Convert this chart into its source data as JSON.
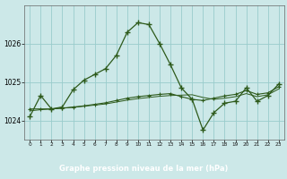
{
  "xlabel": "Graphe pression niveau de la mer (hPa)",
  "bg_color": "#cce8e8",
  "grid_color": "#99cccc",
  "line_color": "#2d5a1b",
  "label_bg": "#3a6b2a",
  "label_fg": "#ffffff",
  "x_ticks": [
    0,
    1,
    2,
    3,
    4,
    5,
    6,
    7,
    8,
    9,
    10,
    11,
    12,
    13,
    14,
    15,
    16,
    17,
    18,
    19,
    20,
    21,
    22,
    23
  ],
  "ylim": [
    1023.5,
    1027.0
  ],
  "yticks": [
    1024,
    1025,
    1026
  ],
  "series1": [
    1024.1,
    1024.65,
    1024.3,
    1024.35,
    1024.8,
    1025.05,
    1025.2,
    1025.35,
    1025.7,
    1026.3,
    1026.55,
    1026.5,
    1026.0,
    1025.45,
    1024.85,
    1024.55,
    1023.75,
    1024.2,
    1024.45,
    1024.5,
    1024.85,
    1024.5,
    1024.65,
    1024.95
  ],
  "series2": [
    1024.3,
    1024.3,
    1024.3,
    1024.32,
    1024.35,
    1024.38,
    1024.42,
    1024.46,
    1024.52,
    1024.58,
    1024.62,
    1024.65,
    1024.68,
    1024.7,
    1024.62,
    1024.55,
    1024.52,
    1024.58,
    1024.64,
    1024.68,
    1024.78,
    1024.68,
    1024.72,
    1024.88
  ],
  "series3": [
    1024.25,
    1024.28,
    1024.3,
    1024.32,
    1024.34,
    1024.37,
    1024.4,
    1024.43,
    1024.48,
    1024.53,
    1024.57,
    1024.6,
    1024.63,
    1024.65,
    1024.66,
    1024.67,
    1024.6,
    1024.55,
    1024.58,
    1024.62,
    1024.7,
    1024.62,
    1024.67,
    1024.82
  ]
}
